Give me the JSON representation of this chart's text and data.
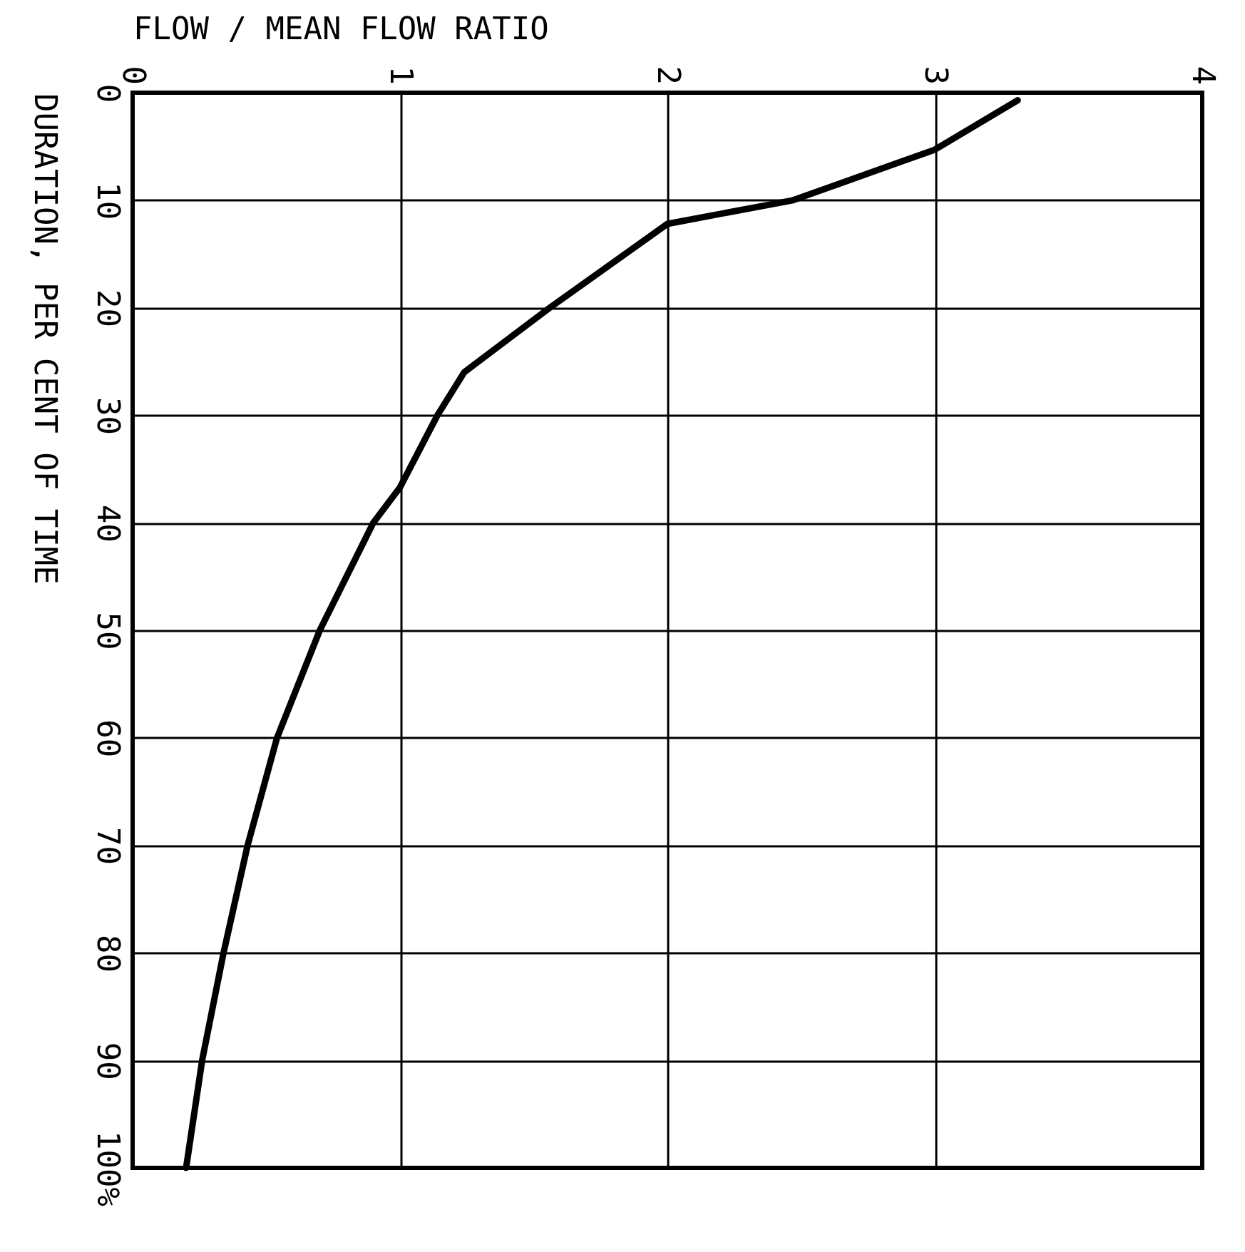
{
  "chart_data": {
    "type": "line",
    "xlabel": "FLOW / MEAN FLOW RATIO",
    "ylabel": "DURATION, PER CENT OF TIME",
    "x": [
      3.31,
      3.0,
      2.47,
      2.0,
      1.56,
      1.24,
      1.14,
      1.0,
      0.9,
      0.7,
      0.54,
      0.43,
      0.34,
      0.26,
      0.2
    ],
    "series": [
      {
        "color": "#000000",
        "values": [
          0.7,
          5.3,
          10,
          12.2,
          20,
          26,
          30,
          36.7,
          40,
          50,
          60,
          70,
          80,
          90,
          100
        ]
      }
    ],
    "xlim": [
      0,
      4
    ],
    "xticks": [
      0,
      1,
      2,
      3,
      4
    ],
    "ylim": [
      100,
      0
    ],
    "yticks": [
      0,
      10,
      20,
      30,
      40,
      50,
      60,
      70,
      80,
      90,
      {
        "value": 100,
        "label": "100%"
      }
    ],
    "grid": true,
    "marker": "none",
    "line_style": "solid"
  }
}
